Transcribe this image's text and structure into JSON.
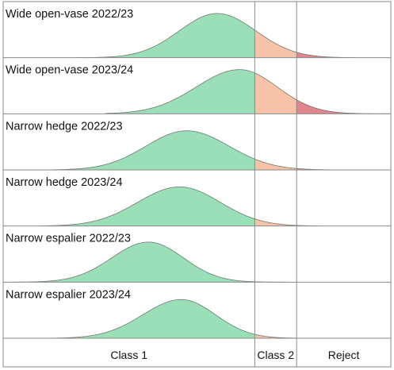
{
  "chart_data": {
    "type": "area",
    "title": "",
    "xlabel": "",
    "ylabel": "",
    "grid": false,
    "classes": [
      {
        "label": "Class 1",
        "color": "#9adfb7"
      },
      {
        "label": "Class 2",
        "color": "#f6c3a9"
      },
      {
        "label": "Reject",
        "color": "#e1848d"
      }
    ],
    "thresholds": [
      0.649,
      0.757
    ],
    "x_range": [
      0,
      1
    ],
    "panels": [
      {
        "name": "Wide open-vase 2022/23",
        "mean": 0.552,
        "sd_left": 0.098,
        "sd_right": 0.1,
        "peak": 0.96,
        "x_min": 0.19,
        "x_max": 0.905
      },
      {
        "name": "Wide open-vase 2023/24",
        "mean": 0.61,
        "sd_left": 0.112,
        "sd_right": 0.097,
        "peak": 0.96,
        "x_min": 0.263,
        "x_max": 0.997
      },
      {
        "name": "Narrow hedge 2022/23",
        "mean": 0.473,
        "sd_left": 0.105,
        "sd_right": 0.11,
        "peak": 0.85,
        "x_min": 0.125,
        "x_max": 0.842
      },
      {
        "name": "Narrow hedge 2023/24",
        "mean": 0.455,
        "sd_left": 0.108,
        "sd_right": 0.105,
        "peak": 0.85,
        "x_min": 0.1,
        "x_max": 0.812
      },
      {
        "name": "Narrow espalier 2022/23",
        "mean": 0.375,
        "sd_left": 0.095,
        "sd_right": 0.09,
        "peak": 0.87,
        "x_min": 0.02,
        "x_max": 0.733
      },
      {
        "name": "Narrow espalier 2023/24",
        "mean": 0.46,
        "sd_left": 0.1,
        "sd_right": 0.088,
        "peak": 0.84,
        "x_min": 0.1,
        "x_max": 0.816
      }
    ]
  }
}
